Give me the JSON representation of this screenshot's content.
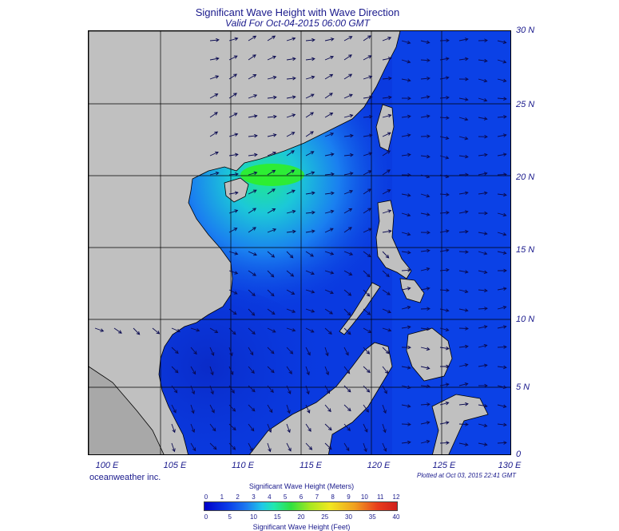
{
  "header": {
    "title": "Significant Wave Height with Wave Direction",
    "subtitle": "Valid For Oct-04-2015 06:00 GMT"
  },
  "map": {
    "lat_labels": [
      "30 N",
      "25 N",
      "20 N",
      "15 N",
      "10 N",
      "5 N",
      "0"
    ],
    "lon_labels": [
      "100 E",
      "105 E",
      "110 E",
      "115 E",
      "120 E",
      "125 E",
      "130 E"
    ],
    "land_color": "#c0c0c0",
    "sea_low_color": "#0a3ae0",
    "sea_high_color": "#20e0b8"
  },
  "footer": {
    "brand": "oceanweather inc.",
    "plotted": "Plotted at Oct 03, 2015 22:41 GMT"
  },
  "legend": {
    "title_top": "Significant Wave Height (Meters)",
    "meters": [
      "0",
      "1",
      "2",
      "3",
      "4",
      "5",
      "6",
      "7",
      "8",
      "9",
      "10",
      "11",
      "12"
    ],
    "feet": [
      "0",
      "5",
      "10",
      "15",
      "20",
      "25",
      "30",
      "35",
      "40"
    ],
    "title_bottom": "Significant Wave Height (Feet)"
  }
}
